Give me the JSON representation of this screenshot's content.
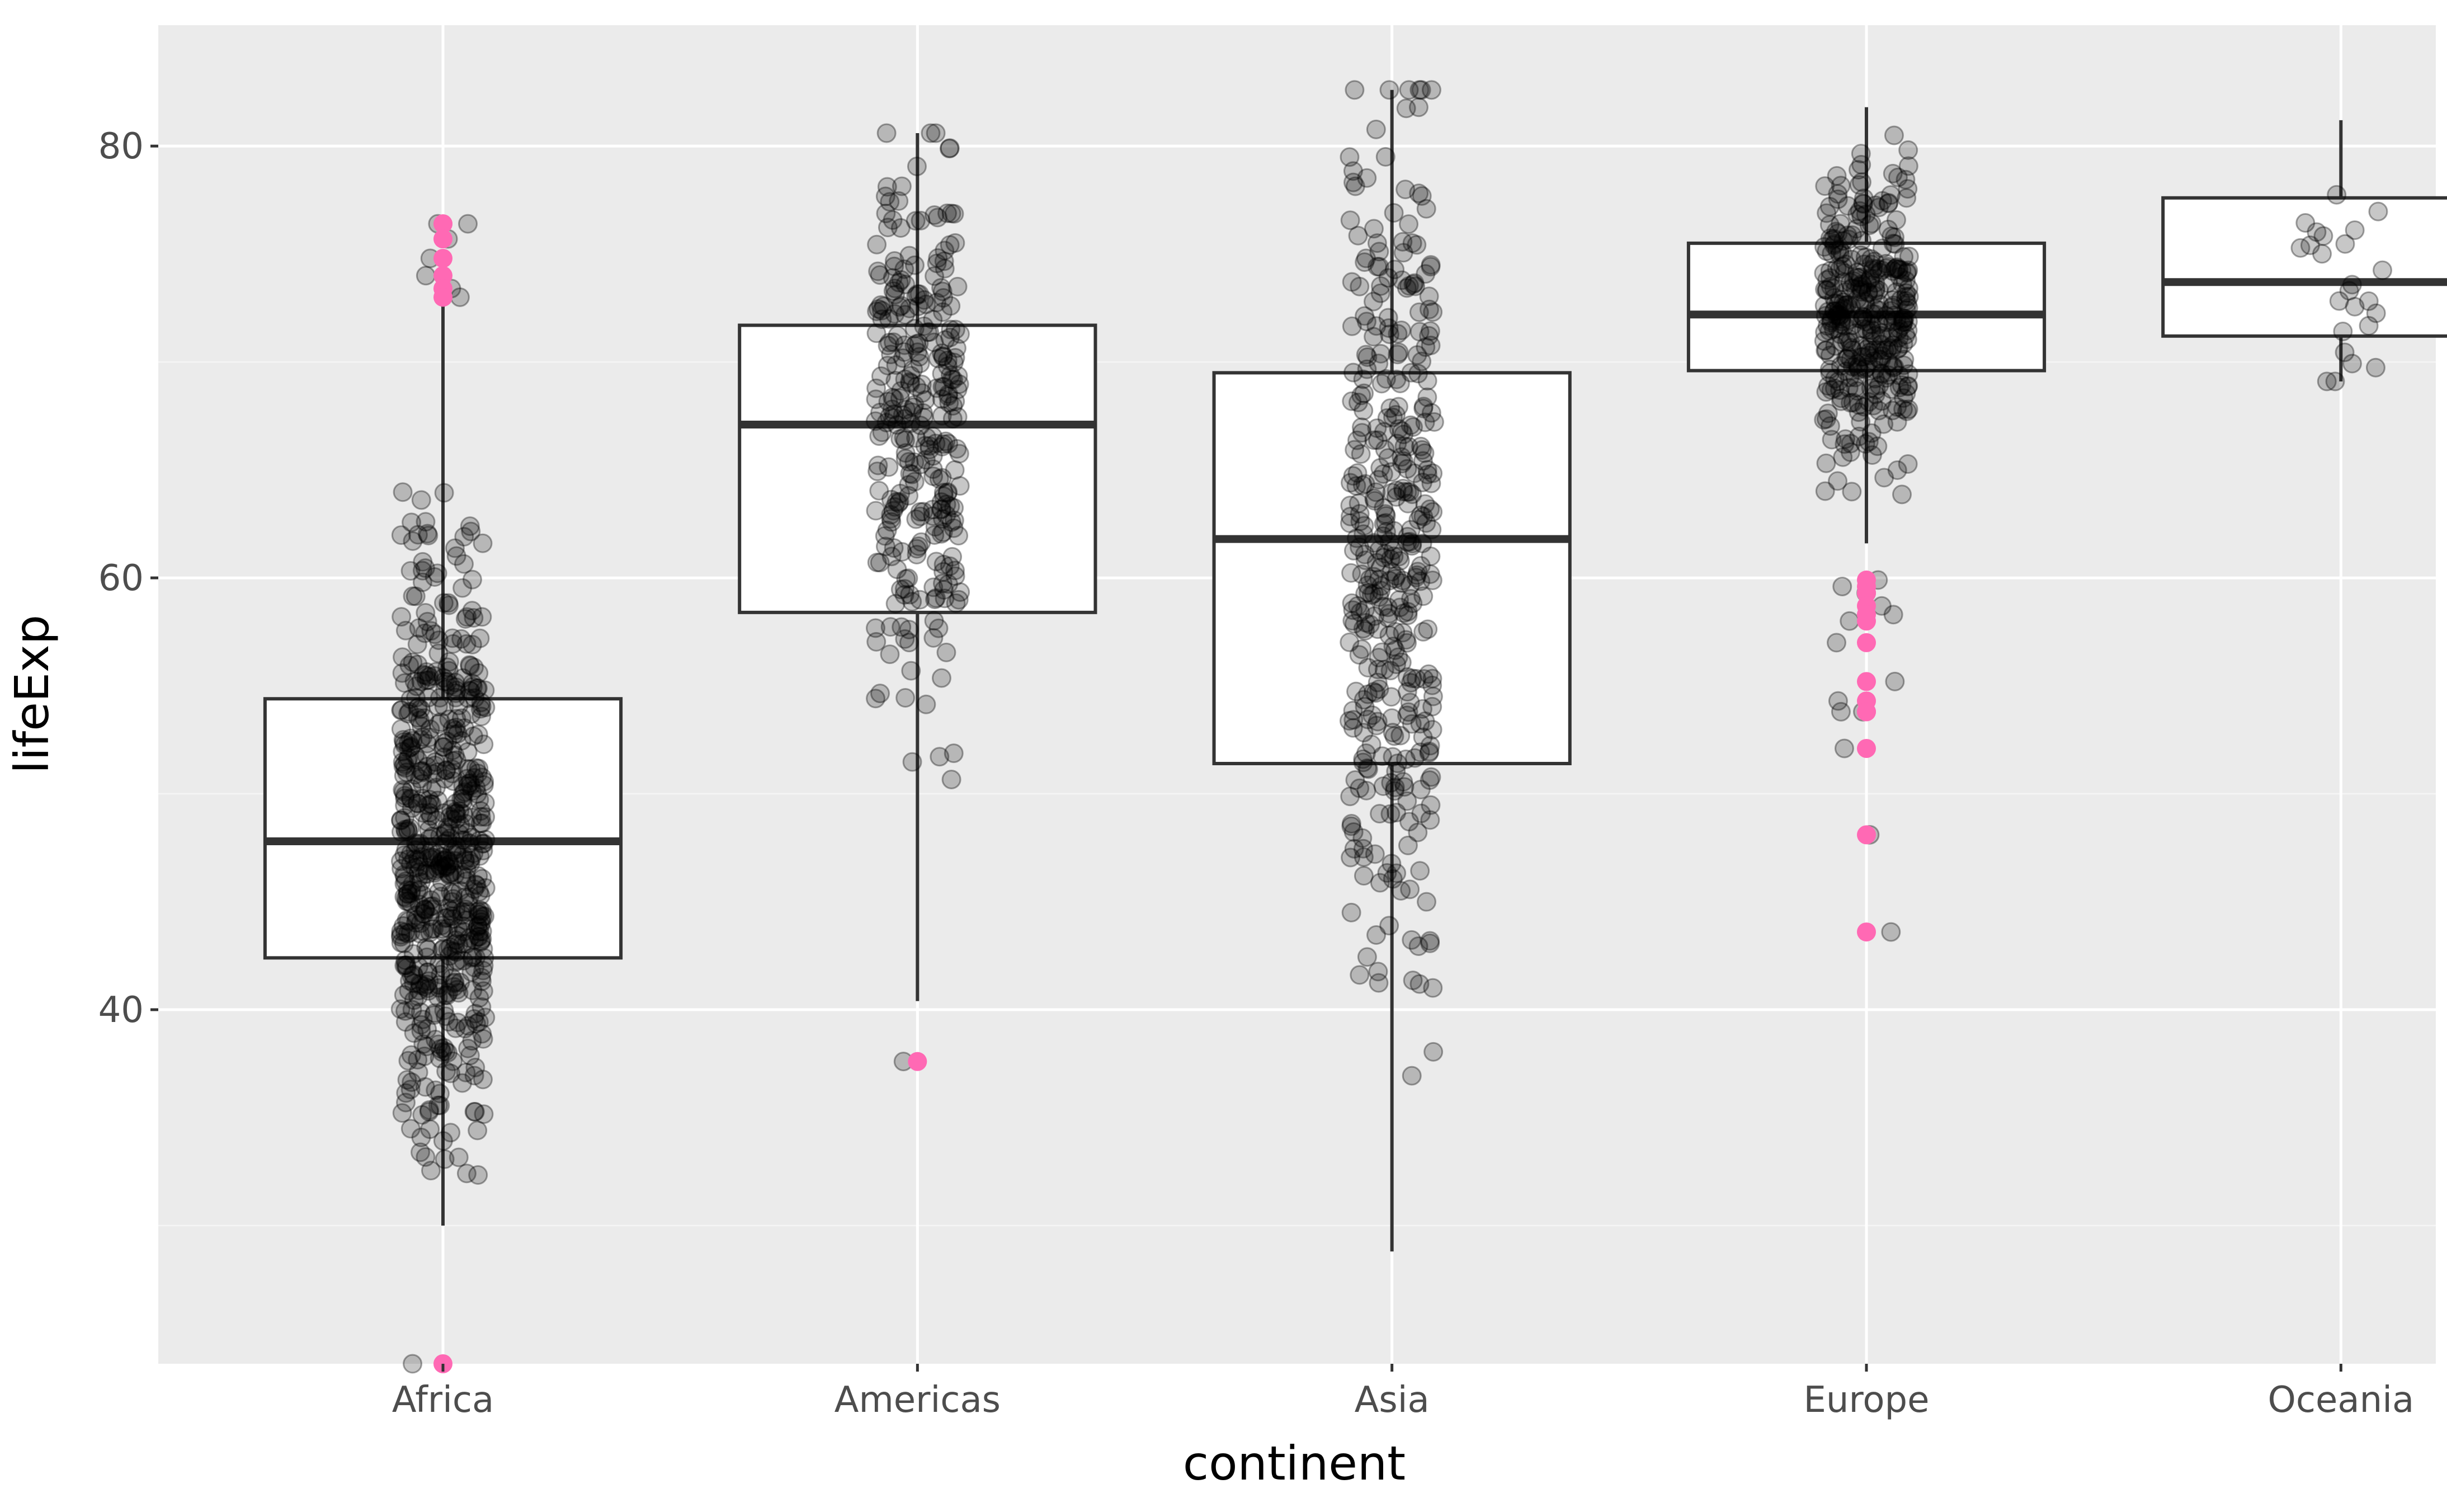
{
  "colors": {
    "panel_background": "#ebebeb",
    "grid_major": "#ffffff",
    "grid_minor": "#f5f5f5",
    "box_fill": "#ffffff",
    "box_outline": "#333333",
    "point": "#000000",
    "outlier": "#ff69b4",
    "tick_text": "#4d4d4d",
    "title_text": "#000000"
  },
  "chart_data": {
    "type": "box",
    "overlay": "jitter-scatter",
    "xlabel": "continent",
    "ylabel": "lifeExp",
    "ylim": [
      23.6,
      85.6
    ],
    "y_ticks": [
      40,
      60,
      80
    ],
    "y_minor_ticks": [
      30,
      50,
      70
    ],
    "grid": true,
    "legend": "none",
    "categories": [
      "Africa",
      "Americas",
      "Asia",
      "Europe",
      "Oceania"
    ],
    "boxes": [
      {
        "category": "Africa",
        "whisker_low": 30.0,
        "q1": 42.4,
        "median": 47.8,
        "q3": 54.4,
        "whisker_high": 72.8,
        "min": 30.0,
        "max": 72.8,
        "n_points": 624
      },
      {
        "category": "Americas",
        "whisker_low": 40.4,
        "q1": 58.4,
        "median": 67.1,
        "q3": 71.7,
        "whisker_high": 80.6,
        "min": 40.4,
        "max": 80.6,
        "n_points": 300
      },
      {
        "category": "Asia",
        "whisker_low": 28.8,
        "q1": 51.4,
        "median": 61.8,
        "q3": 69.5,
        "whisker_high": 82.6,
        "min": 28.8,
        "max": 82.6,
        "n_points": 396
      },
      {
        "category": "Europe",
        "whisker_low": 61.6,
        "q1": 69.6,
        "median": 72.2,
        "q3": 75.5,
        "whisker_high": 81.8,
        "min": 61.6,
        "max": 81.8,
        "n_points": 360
      },
      {
        "category": "Oceania",
        "whisker_low": 69.1,
        "q1": 71.2,
        "median": 73.7,
        "q3": 77.6,
        "whisker_high": 81.2,
        "min": 69.1,
        "max": 81.2,
        "n_points": 24
      }
    ],
    "outliers": [
      {
        "category": "Africa",
        "values": [
          76.4,
          76.4,
          75.7,
          74.8,
          74.0,
          73.4,
          73.0,
          23.6
        ]
      },
      {
        "category": "Americas",
        "values": [
          37.6
        ]
      },
      {
        "category": "Europe",
        "values": [
          59.9,
          59.6,
          59.3,
          58.7,
          58.3,
          58.0,
          57.0,
          55.2,
          54.3,
          53.8,
          53.8,
          52.1,
          48.1,
          43.6
        ]
      }
    ]
  }
}
